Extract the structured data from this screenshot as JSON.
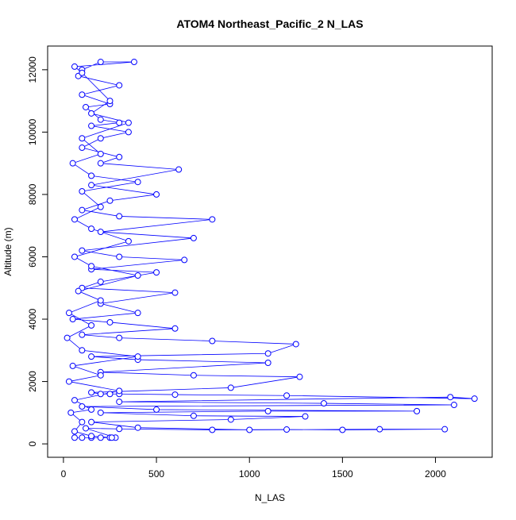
{
  "chart_data": {
    "type": "scatter",
    "lines": true,
    "title": "ATOM4 Northeast_Pacific_2 N_LAS",
    "x_label": "N_LAS",
    "y_label": "Altitude (m)",
    "color": "#0000ff",
    "xlim": [
      -85,
      2305
    ],
    "ylim": [
      -430,
      12760
    ],
    "xticks": [
      0,
      500,
      1000,
      1500,
      2000
    ],
    "yticks": [
      0,
      2000,
      4000,
      6000,
      8000,
      10000,
      12000
    ],
    "x": [
      60,
      100,
      150,
      200,
      250,
      280,
      120,
      300,
      800,
      1200,
      1500,
      2050,
      1700,
      1000,
      400,
      150,
      900,
      1300,
      700,
      200,
      1100,
      1900,
      500,
      100,
      2100,
      1400,
      300,
      2080,
      2210,
      1200,
      600,
      300,
      250,
      200,
      150,
      900,
      1270,
      700,
      200,
      1100,
      400,
      150,
      1100,
      1250,
      800,
      300,
      100,
      600,
      250,
      50,
      400,
      200,
      600,
      100,
      200,
      500,
      150,
      650,
      300,
      100,
      700,
      200,
      800,
      300,
      100,
      250,
      500,
      150,
      620,
      200,
      300,
      100,
      200,
      350,
      150,
      300,
      200,
      120,
      250,
      100,
      300,
      80,
      100,
      200,
      380,
      60,
      100,
      250,
      150,
      350,
      100,
      200,
      50,
      150,
      400,
      100,
      200,
      60,
      150,
      350,
      60,
      150,
      400,
      80,
      200,
      30,
      150,
      20,
      100,
      400,
      50,
      200,
      30,
      300,
      60,
      150,
      40,
      100,
      60,
      150,
      260
    ],
    "values": [
      200,
      200,
      200,
      200,
      200,
      200,
      500,
      480,
      450,
      460,
      450,
      470,
      470,
      450,
      520,
      700,
      780,
      880,
      900,
      1000,
      1050,
      1050,
      1100,
      1200,
      1250,
      1300,
      1350,
      1500,
      1450,
      1550,
      1580,
      1600,
      1600,
      1600,
      1650,
      1800,
      2150,
      2200,
      2300,
      2600,
      2700,
      2800,
      2900,
      3200,
      3300,
      3400,
      3500,
      3700,
      3900,
      4000,
      4200,
      4500,
      4850,
      5000,
      5200,
      5500,
      5600,
      5900,
      6000,
      6200,
      6600,
      6800,
      7200,
      7300,
      7500,
      7800,
      8000,
      8300,
      8800,
      9000,
      9200,
      9500,
      9800,
      10000,
      10200,
      10300,
      10400,
      10800,
      10900,
      11200,
      11500,
      11800,
      12000,
      12250,
      12250,
      12100,
      11900,
      11000,
      10600,
      10300,
      9800,
      9300,
      9000,
      8600,
      8400,
      8100,
      7600,
      7200,
      6900,
      6500,
      6000,
      5700,
      5400,
      4900,
      4600,
      4200,
      3800,
      3400,
      3000,
      2800,
      2500,
      2200,
      2000,
      1700,
      1400,
      1100,
      1000,
      700,
      400,
      250,
      200
    ]
  }
}
